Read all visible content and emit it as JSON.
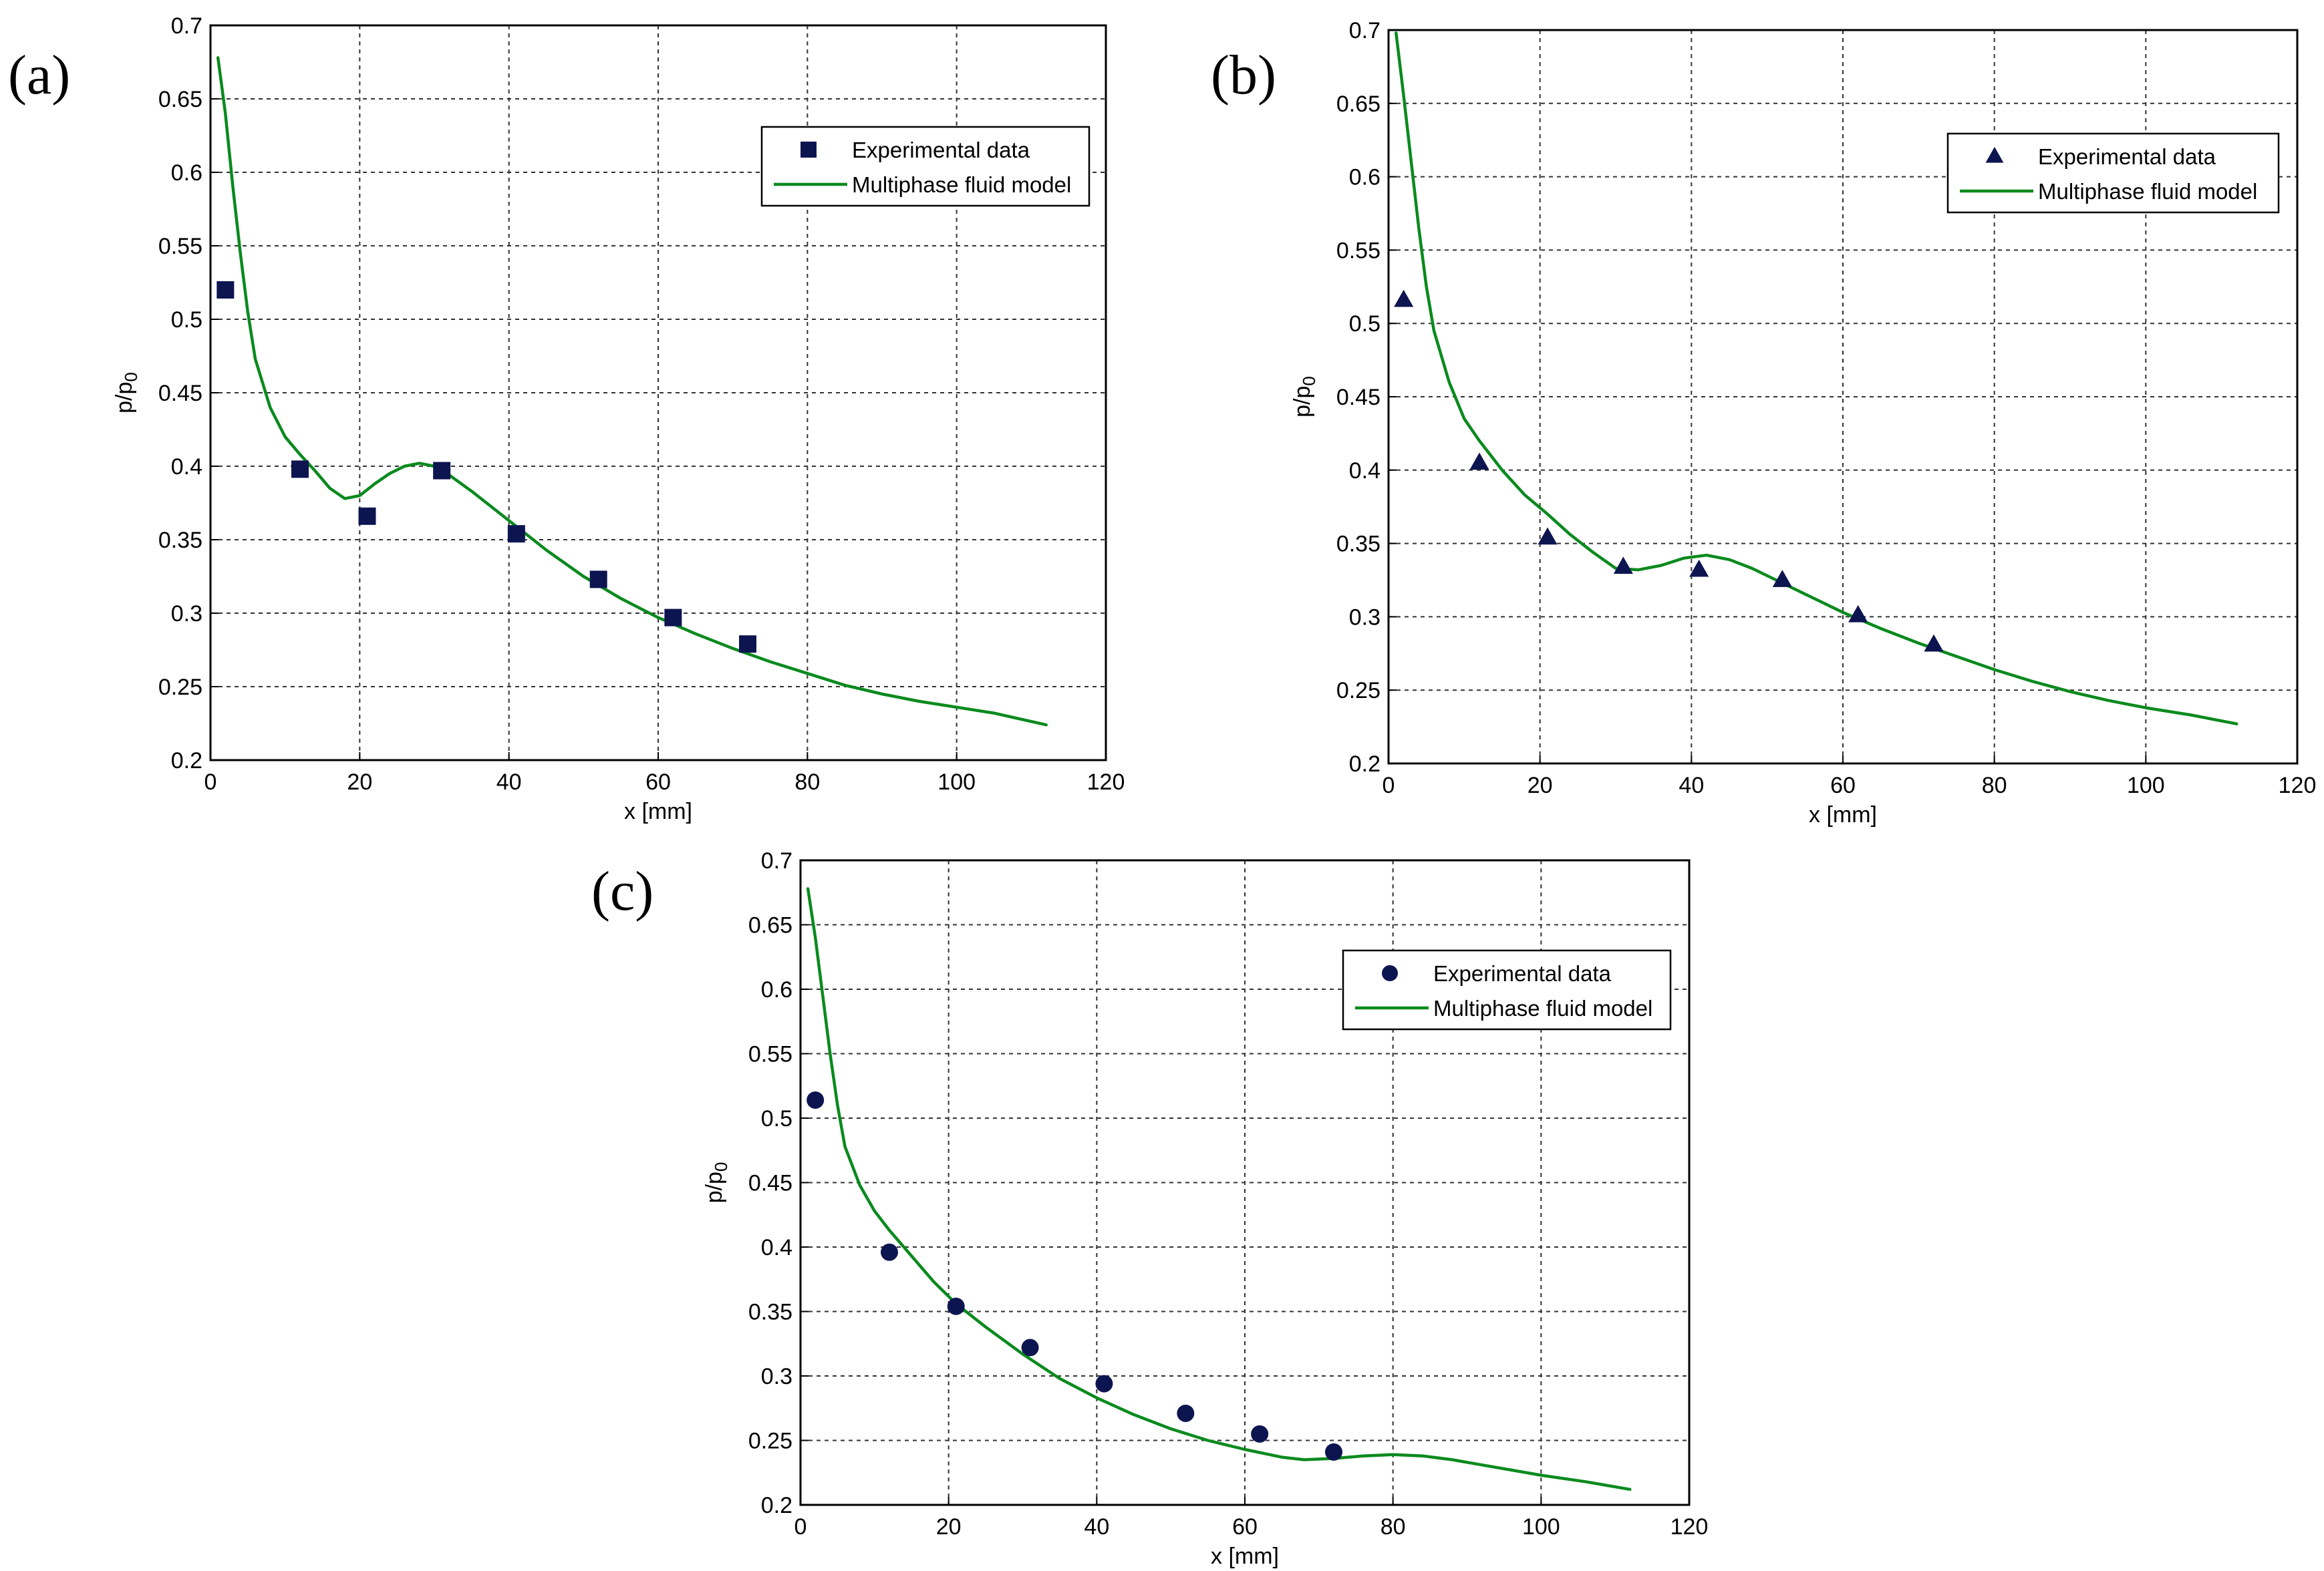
{
  "figure": {
    "panels": [
      {
        "label": "(a)",
        "xlabel": "x [mm]",
        "ylabel": "p/p",
        "ylabel_sub": "0",
        "legend": {
          "experimental": "Experimental data",
          "model": "Multiphase fluid model"
        }
      },
      {
        "label": "(b)",
        "xlabel": "x [mm]",
        "ylabel": "p/p",
        "ylabel_sub": "0",
        "legend": {
          "experimental": "Experimental data",
          "model": "Multiphase fluid model"
        }
      },
      {
        "label": "(c)",
        "xlabel": "x [mm]",
        "ylabel": "p/p",
        "ylabel_sub": "0",
        "legend": {
          "experimental": "Experimental data",
          "model": "Multiphase fluid model"
        }
      }
    ]
  },
  "colors": {
    "model_line": "#0a8a1e",
    "markers": "#0d1550",
    "grid": "#333333"
  },
  "chart_data": [
    {
      "type": "line",
      "panel": "(a)",
      "xlabel": "x [mm]",
      "ylabel": "p/p0",
      "xlim": [
        0,
        120
      ],
      "ylim": [
        0.2,
        0.7
      ],
      "xticks": [
        0,
        20,
        40,
        60,
        80,
        100,
        120
      ],
      "yticks": [
        0.2,
        0.25,
        0.3,
        0.35,
        0.4,
        0.45,
        0.5,
        0.55,
        0.6,
        0.65,
        0.7
      ],
      "grid": true,
      "legend_position": "top-right",
      "series": [
        {
          "name": "Experimental data",
          "kind": "scatter",
          "marker": "square",
          "x": [
            2,
            12,
            21,
            31,
            41,
            52,
            62,
            72
          ],
          "y": [
            0.52,
            0.398,
            0.366,
            0.397,
            0.354,
            0.323,
            0.297,
            0.279
          ]
        },
        {
          "name": "Multiphase fluid model",
          "kind": "line",
          "x": [
            1,
            2,
            3,
            4,
            5,
            6,
            8,
            10,
            12,
            14,
            16,
            18,
            20,
            22,
            24,
            26,
            28,
            30,
            32,
            35,
            40,
            45,
            50,
            55,
            60,
            65,
            70,
            75,
            80,
            85,
            90,
            95,
            100,
            105,
            112
          ],
          "y": [
            0.678,
            0.64,
            0.59,
            0.545,
            0.505,
            0.473,
            0.44,
            0.42,
            0.408,
            0.397,
            0.385,
            0.378,
            0.38,
            0.388,
            0.395,
            0.4,
            0.402,
            0.4,
            0.394,
            0.383,
            0.363,
            0.343,
            0.325,
            0.31,
            0.297,
            0.286,
            0.276,
            0.267,
            0.259,
            0.251,
            0.245,
            0.24,
            0.236,
            0.232,
            0.224
          ]
        }
      ]
    },
    {
      "type": "line",
      "panel": "(b)",
      "xlabel": "x [mm]",
      "ylabel": "p/p0",
      "xlim": [
        0,
        120
      ],
      "ylim": [
        0.2,
        0.7
      ],
      "xticks": [
        0,
        20,
        40,
        60,
        80,
        100,
        120
      ],
      "yticks": [
        0.2,
        0.25,
        0.3,
        0.35,
        0.4,
        0.45,
        0.5,
        0.55,
        0.6,
        0.65,
        0.7
      ],
      "grid": true,
      "legend_position": "top-right",
      "series": [
        {
          "name": "Experimental data",
          "kind": "scatter",
          "marker": "triangle",
          "x": [
            2,
            12,
            21,
            31,
            41,
            52,
            62,
            72
          ],
          "y": [
            0.516,
            0.405,
            0.354,
            0.334,
            0.332,
            0.325,
            0.301,
            0.281
          ]
        },
        {
          "name": "Multiphase fluid model",
          "kind": "line",
          "x": [
            1,
            2,
            3,
            4,
            5,
            6,
            8,
            10,
            12,
            15,
            18,
            21,
            24,
            27,
            30,
            33,
            36,
            39,
            42,
            45,
            48,
            52,
            56,
            60,
            65,
            70,
            75,
            80,
            85,
            90,
            95,
            100,
            106,
            112
          ],
          "y": [
            0.698,
            0.655,
            0.61,
            0.565,
            0.525,
            0.495,
            0.46,
            0.435,
            0.42,
            0.4,
            0.383,
            0.37,
            0.356,
            0.344,
            0.333,
            0.332,
            0.335,
            0.34,
            0.342,
            0.339,
            0.333,
            0.323,
            0.313,
            0.303,
            0.292,
            0.282,
            0.273,
            0.264,
            0.256,
            0.249,
            0.243,
            0.238,
            0.233,
            0.227
          ]
        }
      ]
    },
    {
      "type": "line",
      "panel": "(c)",
      "xlabel": "x [mm]",
      "ylabel": "p/p0",
      "xlim": [
        0,
        120
      ],
      "ylim": [
        0.2,
        0.7
      ],
      "xticks": [
        0,
        20,
        40,
        60,
        80,
        100,
        120
      ],
      "yticks": [
        0.2,
        0.25,
        0.3,
        0.35,
        0.4,
        0.45,
        0.5,
        0.55,
        0.6,
        0.65,
        0.7
      ],
      "grid": true,
      "legend_position": "top-right",
      "series": [
        {
          "name": "Experimental data",
          "kind": "scatter",
          "marker": "circle",
          "x": [
            2,
            12,
            21,
            31,
            41,
            52,
            62,
            72
          ],
          "y": [
            0.514,
            0.396,
            0.354,
            0.322,
            0.294,
            0.271,
            0.255,
            0.241
          ]
        },
        {
          "name": "Multiphase fluid model",
          "kind": "line",
          "x": [
            1,
            2,
            3,
            4,
            5,
            6,
            8,
            10,
            12,
            15,
            18,
            21,
            25,
            30,
            35,
            40,
            45,
            50,
            55,
            60,
            65,
            68,
            72,
            76,
            80,
            84,
            88,
            92,
            96,
            100,
            106,
            112
          ],
          "y": [
            0.678,
            0.64,
            0.595,
            0.55,
            0.51,
            0.478,
            0.448,
            0.428,
            0.413,
            0.393,
            0.373,
            0.356,
            0.338,
            0.317,
            0.298,
            0.283,
            0.27,
            0.259,
            0.25,
            0.243,
            0.237,
            0.235,
            0.236,
            0.238,
            0.239,
            0.238,
            0.235,
            0.231,
            0.227,
            0.223,
            0.218,
            0.212
          ]
        }
      ]
    }
  ]
}
